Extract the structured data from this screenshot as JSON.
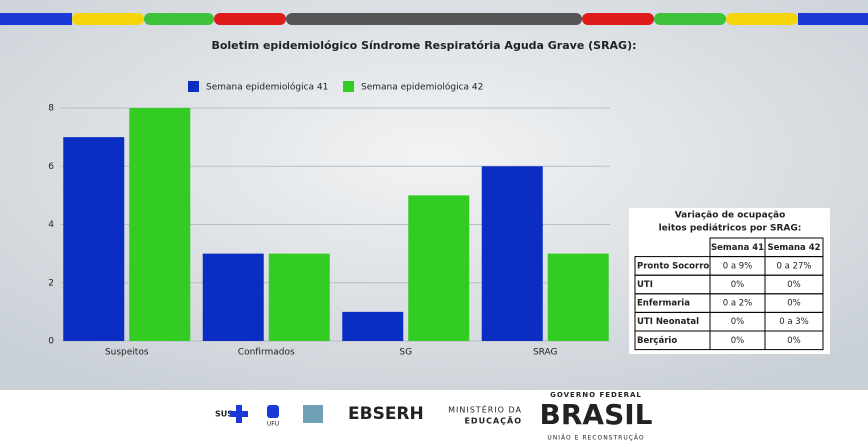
{
  "chart_data": {
    "type": "bar",
    "title": "Boletim epidemiológico Síndrome Respiratória Aguda Grave (SRAG):",
    "categories": [
      "Suspeitos",
      "Confirmados",
      "SG",
      "SRAG"
    ],
    "series": [
      {
        "name": "Semana epidemiológica 41",
        "color": "#0b2ec2",
        "values": [
          7,
          3,
          1,
          6
        ]
      },
      {
        "name": "Semana epidemiológica 42",
        "color": "#33cc22",
        "values": [
          8,
          3,
          5,
          3
        ]
      }
    ],
    "ylim": [
      0,
      8
    ],
    "yticks": [
      0,
      2,
      4,
      6,
      8
    ],
    "grid": true,
    "legend": "top"
  },
  "table": {
    "title": [
      "Variação de ocupação",
      "leitos pediátricos por SRAG:"
    ],
    "header": [
      "Semana 41",
      "Semana 42"
    ],
    "rows": [
      [
        "Pronto Socorro",
        "0 a 9%",
        "0 a 27%"
      ],
      [
        "UTI",
        "0%",
        "0%"
      ],
      [
        "Enfermaria",
        "0 a 2%",
        "0%"
      ],
      [
        "UTI Neonatal",
        "0%",
        "0 a 3%"
      ],
      [
        "Berçário",
        "0%",
        "0%"
      ]
    ]
  },
  "footer": {
    "sus": "SUS",
    "ufu": "UFU",
    "ebserh": "EBSERH",
    "ministerio": [
      "MINISTÉRIO DA",
      "EDUCAÇÃO"
    ],
    "governo": "GOVERNO FEDERAL",
    "brasil": "BRASIL",
    "slogan": "UNIÃO E RECONSTRUÇÃO"
  }
}
